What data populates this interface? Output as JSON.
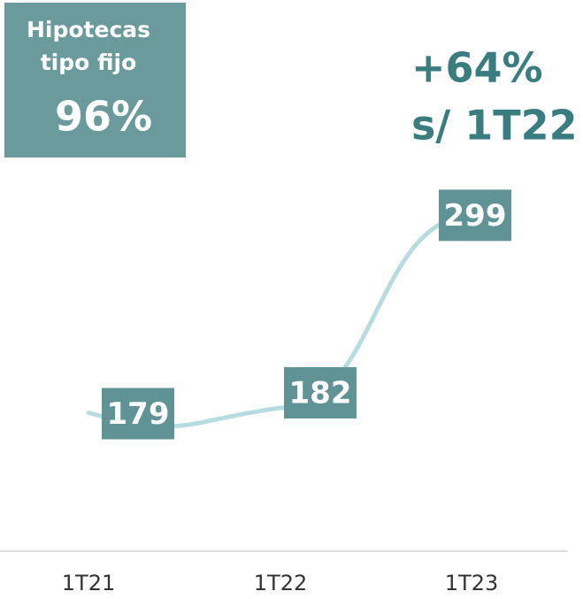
{
  "chart_data": {
    "type": "line",
    "categories": [
      "1T21",
      "1T22",
      "1T23"
    ],
    "series": [
      {
        "color": "#b7dce0",
        "values": [
          179,
          182,
          299
        ]
      }
    ],
    "ylim": [
      95,
      431
    ],
    "label_color": "#5f9396",
    "badge": {
      "lines": [
        "Hipotecas",
        "tipo fijo"
      ],
      "value": "96%",
      "color": "#6a9a9c"
    },
    "annotation": {
      "lines": [
        "+64%",
        "s/ 1T22"
      ],
      "color": "#3a7d81"
    }
  }
}
